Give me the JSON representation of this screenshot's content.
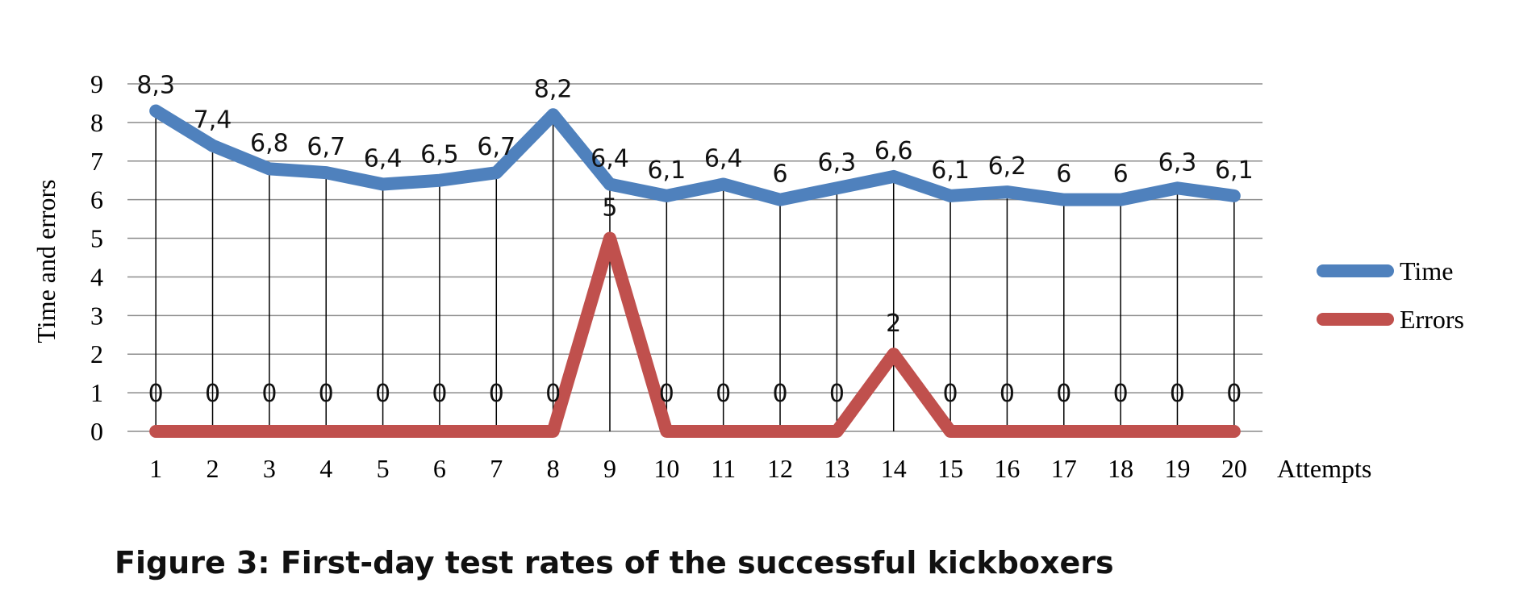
{
  "caption": "Figure 3: First-day test rates of the successful kickboxers",
  "chart_data": {
    "type": "line",
    "x": [
      1,
      2,
      3,
      4,
      5,
      6,
      7,
      8,
      9,
      10,
      11,
      12,
      13,
      14,
      15,
      16,
      17,
      18,
      19,
      20
    ],
    "series": [
      {
        "name": "Time",
        "color": "#4F81BD",
        "values": [
          8.3,
          7.4,
          6.8,
          6.7,
          6.4,
          6.5,
          6.7,
          8.2,
          6.4,
          6.1,
          6.4,
          6,
          6.3,
          6.6,
          6.1,
          6.2,
          6,
          6,
          6.3,
          6.1
        ],
        "labels": [
          "8,3",
          "7,4",
          "6,8",
          "6,7",
          "6,4",
          "6,5",
          "6,7",
          "8,2",
          "6,4",
          "6,1",
          "6,4",
          "6",
          "6,3",
          "6,6",
          "6,1",
          "6,2",
          "6",
          "6",
          "6,3",
          "6,1"
        ]
      },
      {
        "name": "Errors",
        "color": "#C0504D",
        "values": [
          0,
          0,
          0,
          0,
          0,
          0,
          0,
          0,
          5,
          0,
          0,
          0,
          0,
          2,
          0,
          0,
          0,
          0,
          0,
          0
        ],
        "labels": [
          "0",
          "0",
          "0",
          "0",
          "0",
          "0",
          "0",
          "0",
          "5",
          "0",
          "0",
          "0",
          "0",
          "2",
          "0",
          "0",
          "0",
          "0",
          "0",
          "0"
        ]
      }
    ],
    "xlabel": "Attempts",
    "ylabel": "Time and errors",
    "ylim": [
      0,
      9
    ],
    "yticks": [
      "0",
      "1",
      "2",
      "3",
      "4",
      "5",
      "6",
      "7",
      "8",
      "9"
    ],
    "xticks": [
      "1",
      "2",
      "3",
      "4",
      "5",
      "6",
      "7",
      "8",
      "9",
      "10",
      "11",
      "12",
      "13",
      "14",
      "15",
      "16",
      "17",
      "18",
      "19",
      "20"
    ],
    "grid": true,
    "drop_lines": true,
    "legend_position": "right"
  }
}
